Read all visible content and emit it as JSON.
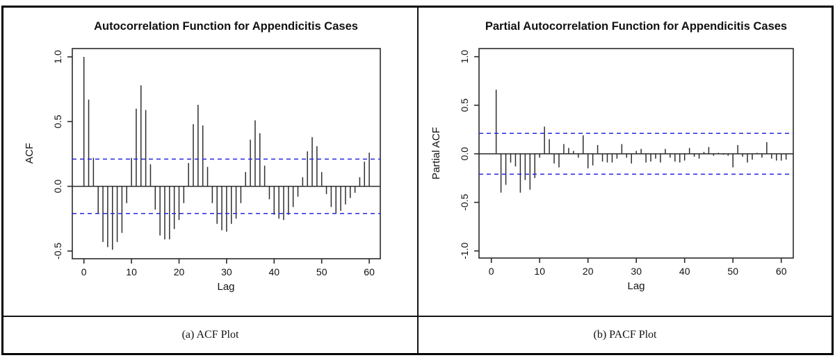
{
  "figure": {
    "captions": [
      {
        "label": "(a) ACF Plot"
      },
      {
        "label": "(b) PACF Plot"
      }
    ]
  },
  "colors": {
    "background": "#ffffff",
    "border": "#010101",
    "axis": "#2a2a2a",
    "bar": "#2e2e2e",
    "ci_line": "#2626e0",
    "text": "#111111"
  },
  "chart_data": [
    {
      "type": "bar",
      "title": "Autocorrelation Function for Appendicitis Cases",
      "xlabel": "Lag",
      "ylabel": "ACF",
      "legend": "none",
      "grid": false,
      "lag_start": 0,
      "xlim": [
        0,
        62
      ],
      "ylim": [
        -0.56,
        1.06
      ],
      "xticks": [
        0,
        10,
        20,
        30,
        40,
        50,
        60
      ],
      "ytick_labels": [
        "1.0",
        "0.5",
        "0.0",
        "-0.5"
      ],
      "conf_level": 0.21,
      "conf_style": "dashed-blue",
      "values": [
        1.0,
        0.67,
        0.22,
        -0.21,
        -0.43,
        -0.47,
        -0.49,
        -0.43,
        -0.36,
        -0.13,
        0.22,
        0.6,
        0.78,
        0.59,
        0.17,
        -0.18,
        -0.38,
        -0.41,
        -0.41,
        -0.33,
        -0.26,
        -0.13,
        0.18,
        0.48,
        0.63,
        0.47,
        0.15,
        -0.13,
        -0.29,
        -0.34,
        -0.35,
        -0.29,
        -0.25,
        -0.13,
        0.11,
        0.36,
        0.51,
        0.41,
        0.16,
        -0.1,
        -0.22,
        -0.25,
        -0.26,
        -0.22,
        -0.16,
        -0.08,
        0.07,
        0.27,
        0.38,
        0.31,
        0.11,
        -0.06,
        -0.16,
        -0.21,
        -0.19,
        -0.14,
        -0.09,
        -0.05,
        0.07,
        0.19,
        0.26
      ]
    },
    {
      "type": "bar",
      "title": "Partial Autocorrelation Function for Appendicitis Cases",
      "xlabel": "Lag",
      "ylabel": "Partial ACF",
      "legend": "none",
      "grid": false,
      "lag_start": 1,
      "xlim": [
        0,
        62
      ],
      "ylim": [
        -1.08,
        1.08
      ],
      "xticks": [
        0,
        10,
        20,
        30,
        40,
        50,
        60
      ],
      "ytick_labels": [
        "1.0",
        "0.5",
        "0.0",
        "-0.5",
        "-1.0"
      ],
      "conf_level": 0.21,
      "conf_style": "dashed-blue",
      "values": [
        0.66,
        -0.4,
        -0.32,
        -0.09,
        -0.13,
        -0.4,
        -0.27,
        -0.37,
        -0.25,
        -0.04,
        0.28,
        0.15,
        -0.1,
        -0.14,
        0.1,
        0.06,
        0.03,
        -0.04,
        0.19,
        -0.15,
        -0.12,
        0.09,
        -0.08,
        -0.09,
        -0.09,
        -0.05,
        0.1,
        -0.04,
        -0.1,
        0.03,
        0.05,
        -0.09,
        -0.08,
        -0.05,
        -0.09,
        0.05,
        -0.04,
        -0.08,
        -0.09,
        -0.07,
        0.06,
        -0.03,
        -0.05,
        0.02,
        0.07,
        -0.02,
        0.01,
        -0.01,
        -0.02,
        -0.14,
        0.09,
        -0.03,
        -0.09,
        -0.06,
        0.01,
        -0.04,
        0.12,
        -0.05,
        -0.07,
        -0.07,
        -0.06
      ]
    }
  ]
}
